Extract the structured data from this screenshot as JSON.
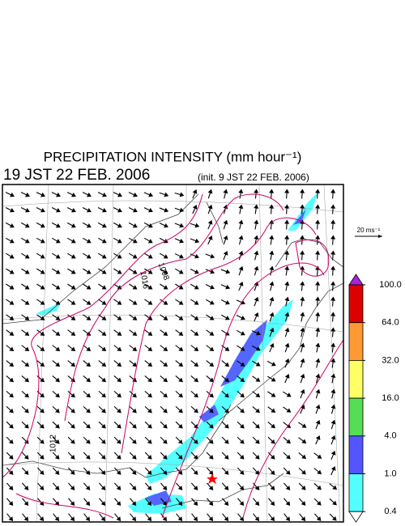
{
  "header": {
    "title": "PRECIPITATION INTENSITY (mm hour⁻¹)",
    "valid_time": "19 JST 22 FEB. 2006",
    "init_time": "(init. 9 JST 22 FEB. 2006)"
  },
  "map": {
    "reference_vector": "20 ms⁻¹",
    "contour_labels": [
      "1016",
      "1008",
      "1012"
    ]
  },
  "colorbar": {
    "ticks": [
      {
        "value": 100,
        "label": "100.0"
      },
      {
        "value": 64,
        "label": "64.0"
      },
      {
        "value": 32,
        "label": "32.0"
      },
      {
        "value": 16,
        "label": "16.0"
      },
      {
        "value": 4,
        "label": "4.0"
      },
      {
        "value": 1,
        "label": "1.0"
      },
      {
        "value": 0.4,
        "label": "0.4"
      }
    ],
    "colors": [
      "#dd0000",
      "#ff9933",
      "#ffff66",
      "#55dd55",
      "#5555ff",
      "#55ffff"
    ],
    "over_color": "#aa22dd",
    "under_color": "#ffffff"
  }
}
